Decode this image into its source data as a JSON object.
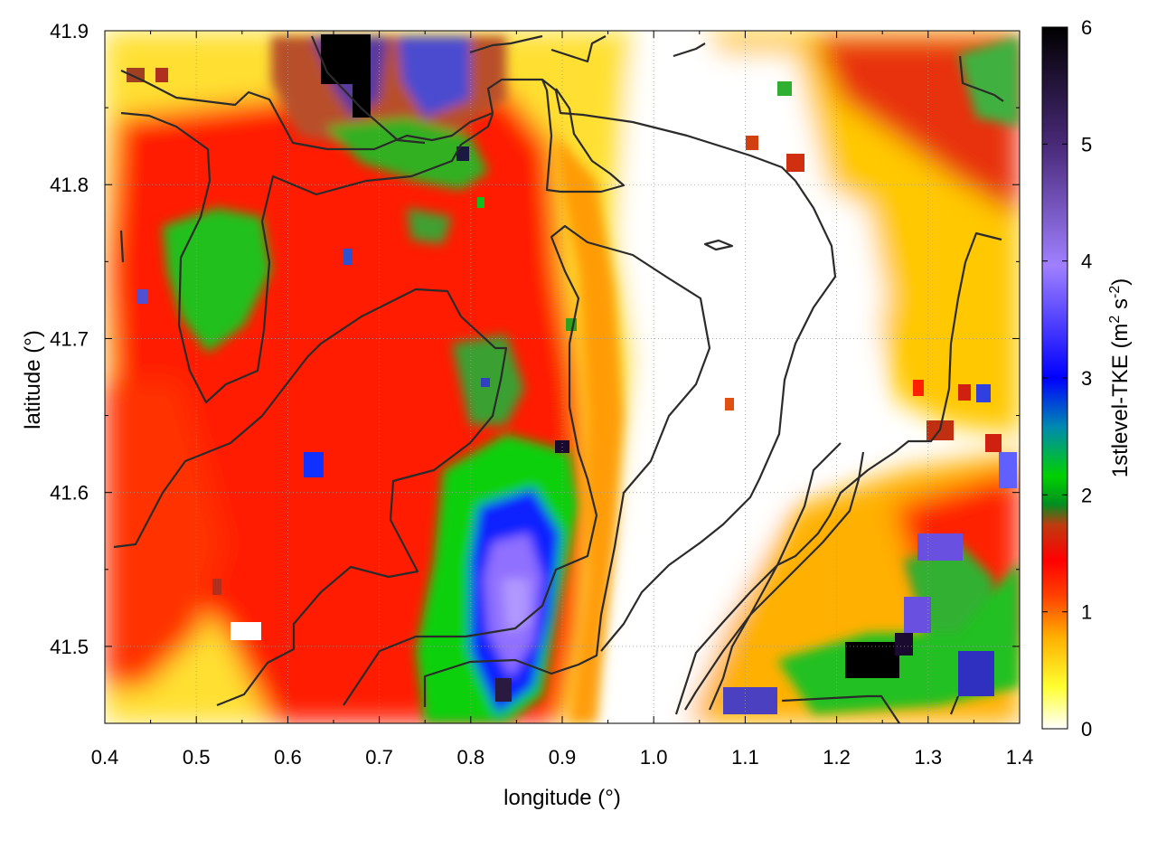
{
  "chart_data": {
    "type": "heatmap",
    "title": "",
    "xlabel": "longitude (°)",
    "ylabel": "latitude (°)",
    "xlim": [
      0.4,
      1.4
    ],
    "ylim": [
      41.45,
      41.9
    ],
    "x_ticks": [
      0.4,
      0.5,
      0.6,
      0.7,
      0.8,
      0.9,
      1.0,
      1.1,
      1.2,
      1.3,
      1.4
    ],
    "x_tick_labels": [
      "0.4",
      "0.5",
      "0.6",
      "0.7",
      "0.8",
      "0.9",
      "1.0",
      "1.1",
      "1.2",
      "1.3",
      "1.4"
    ],
    "y_ticks": [
      41.5,
      41.6,
      41.7,
      41.8,
      41.9
    ],
    "y_tick_labels": [
      "41.5",
      "41.6",
      "41.7",
      "41.8",
      "41.9"
    ],
    "grid": true,
    "colorbar": {
      "label": "1stlevel-TKE (m² s⁻²)",
      "label_main": "1stlevel-TKE (m",
      "label_sup1": "2",
      "label_mid": " s",
      "label_sup2": "-2",
      "label_end": ")",
      "range": [
        0,
        6
      ],
      "ticks": [
        0,
        1,
        2,
        3,
        4,
        5,
        6
      ],
      "tick_labels": [
        "0",
        "1",
        "2",
        "3",
        "4",
        "5",
        "6"
      ],
      "colors": [
        "#ffffff",
        "#ffff00",
        "#ff9900",
        "#ff0000",
        "#008000",
        "#00cc00",
        "#0000ff",
        "#9966ff",
        "#000000"
      ]
    },
    "field_features": [
      {
        "lon": 0.9,
        "lat": 41.7,
        "tke": 1.0,
        "note": "red band"
      },
      {
        "lon": 0.85,
        "lat": 41.53,
        "tke": 4.2,
        "note": "blue/purple core"
      },
      {
        "lon": 0.67,
        "lat": 41.88,
        "tke": 6.0,
        "note": "black peak north"
      },
      {
        "lon": 0.5,
        "lat": 41.74,
        "tke": 1.9,
        "note": "green patch west"
      },
      {
        "lon": 1.0,
        "lat": 41.7,
        "tke": 0.1,
        "note": "white low-TKE region"
      },
      {
        "lon": 1.25,
        "lat": 41.49,
        "tke": 6.0,
        "note": "black peak southeast"
      },
      {
        "lon": 1.35,
        "lat": 41.85,
        "tke": 1.2,
        "note": "northeast patches"
      }
    ],
    "contour_count": 9
  }
}
